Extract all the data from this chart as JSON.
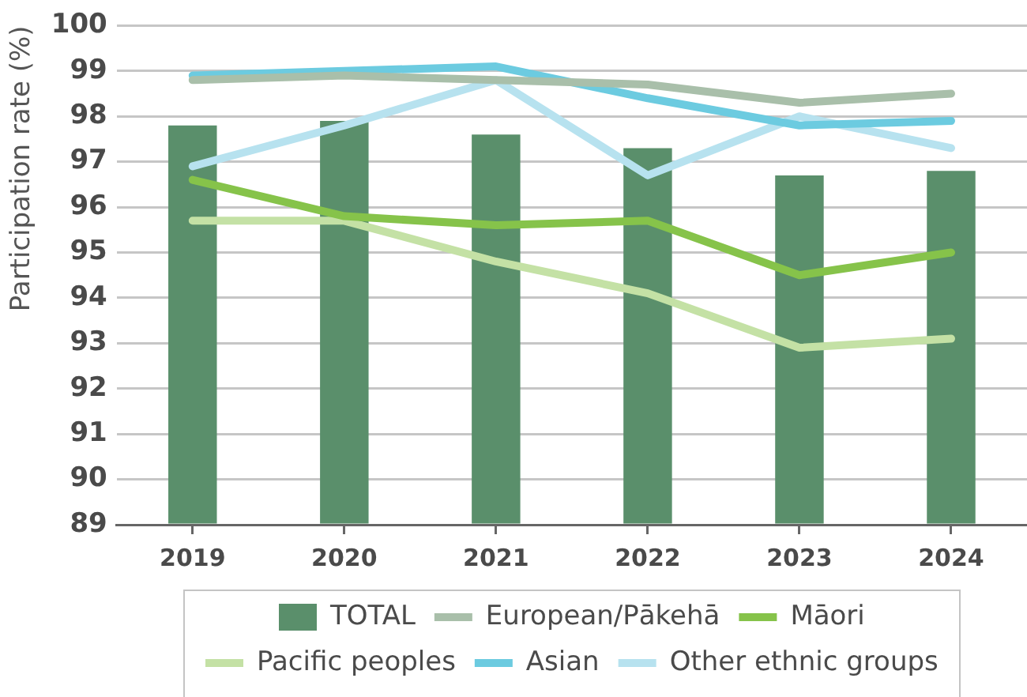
{
  "chart_data": {
    "type": "bar",
    "ylabel": "Participation rate (%)",
    "categories": [
      "2019",
      "2020",
      "2021",
      "2022",
      "2023",
      "2024"
    ],
    "series": [
      {
        "name": "TOTAL",
        "color": "#5a8f6b",
        "values": [
          97.8,
          97.9,
          97.6,
          97.3,
          96.7,
          96.8
        ]
      },
      {
        "name": "European/Pākehā",
        "type": "line",
        "color": "#a9bfaa",
        "values": [
          98.8,
          98.9,
          98.8,
          98.7,
          98.3,
          98.5
        ]
      },
      {
        "name": "Māori",
        "type": "line",
        "color": "#86c34a",
        "values": [
          96.6,
          95.8,
          95.6,
          95.7,
          94.5,
          95.0
        ]
      },
      {
        "name": "Pacific peoples",
        "type": "line",
        "color": "#c4e1a5",
        "values": [
          95.7,
          95.7,
          94.8,
          94.1,
          92.9,
          93.1
        ]
      },
      {
        "name": "Asian",
        "type": "line",
        "color": "#6ccbe0",
        "values": [
          98.9,
          99.0,
          99.1,
          98.4,
          97.8,
          97.9
        ]
      },
      {
        "name": "Other ethnic groups",
        "type": "line",
        "color": "#b7e2ef",
        "values": [
          96.9,
          97.8,
          98.8,
          96.7,
          98.0,
          97.3
        ]
      }
    ],
    "ylim": [
      89,
      100
    ],
    "yticks": [
      89,
      90,
      91,
      92,
      93,
      94,
      95,
      96,
      97,
      98,
      99,
      100
    ],
    "grid": "y",
    "legend": "bottom",
    "marker": "none",
    "line_style": "solid"
  }
}
